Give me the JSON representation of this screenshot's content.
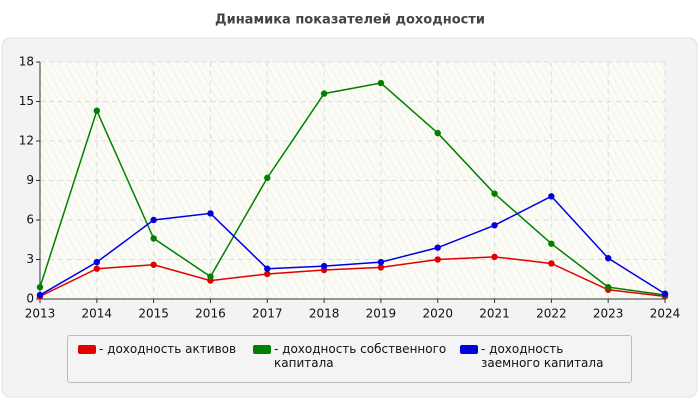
{
  "chart_data": {
    "type": "line",
    "title": "Динамика показателей доходности",
    "x": [
      2013,
      2014,
      2015,
      2016,
      2017,
      2018,
      2019,
      2020,
      2021,
      2022,
      2023,
      2024
    ],
    "xlim": [
      2013,
      2024
    ],
    "xticks": [
      2013,
      2014,
      2015,
      2016,
      2017,
      2018,
      2019,
      2020,
      2021,
      2022,
      2023,
      2024
    ],
    "ylim": [
      0,
      18
    ],
    "yticks": [
      0,
      3,
      6,
      9,
      12,
      15,
      18
    ],
    "grid": true,
    "series": [
      {
        "name": "- доходность активов",
        "color": "#e00000",
        "values": [
          0.2,
          2.3,
          2.6,
          1.4,
          1.9,
          2.2,
          2.4,
          3.0,
          3.2,
          2.7,
          0.7,
          0.2
        ]
      },
      {
        "name": "- доходность собственного капитала",
        "color": "#008000",
        "values": [
          0.9,
          14.3,
          4.6,
          1.7,
          9.2,
          15.6,
          16.4,
          12.6,
          8.0,
          4.2,
          0.9,
          0.3
        ]
      },
      {
        "name": "- доходность заемного капитала",
        "color": "#0000e0",
        "values": [
          0.3,
          2.8,
          6.0,
          6.5,
          2.3,
          2.5,
          2.8,
          3.9,
          5.6,
          7.8,
          3.1,
          0.4
        ]
      }
    ]
  }
}
